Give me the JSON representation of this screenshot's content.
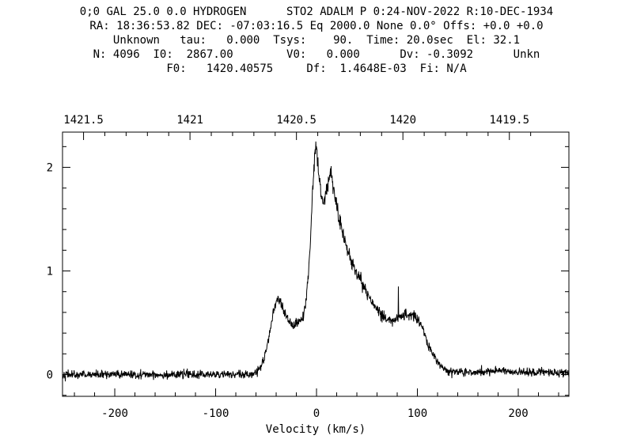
{
  "colors": {
    "background": "#ffffff",
    "foreground": "#000000"
  },
  "header": {
    "lines": [
      "0;0 GAL 25.0 0.0 HYDROGEN      STO2 ADALM P 0:24-NOV-2022 R:10-DEC-1934",
      "RA: 18:36:53.82 DEC: -07:03:16.5 Eq 2000.0 None 0.0° Offs: +0.0 +0.0",
      "Unknown   tau:   0.000  Tsys:    90.  Time: 20.0sec  El: 32.1",
      "N: 4096  I0:  2867.00        V0:   0.000      Dv: -0.3092      Unkn",
      "F0:   1420.40575     Df:  1.4648E-03  Fi: N/A"
    ]
  },
  "chart_data": {
    "type": "line",
    "title": "",
    "xlabel": "Velocity (km/s)",
    "ylabel": "",
    "grid": false,
    "legend": "none",
    "line_color": "#000000",
    "xlim": [
      -251.8,
      250.2
    ],
    "ylim": [
      -0.21,
      2.34
    ],
    "x_ticks_major": [
      -200,
      -100,
      0,
      100,
      200
    ],
    "x_tick_labels": [
      "-200",
      "-100",
      "0",
      "100",
      "200"
    ],
    "x_ticks_minor_step": 20,
    "y_ticks_major": [
      0,
      1,
      2
    ],
    "y_tick_labels": [
      "0",
      "1",
      "2"
    ],
    "y_ticks_minor_step": 0.2,
    "top_axis": {
      "unit": "MHz",
      "rest_freq": 1420.40575,
      "c_kms": 299792.458,
      "tick_start": 1421.5,
      "tick_step": 0.1,
      "tick_count": 22,
      "ticks_major": [
        1421.5,
        1421.0,
        1420.5,
        1420.0,
        1419.5
      ],
      "labels": [
        "1421.5",
        "1421",
        "1420.5",
        "1420",
        "1419.5"
      ]
    },
    "channel_width_kms": 0.31,
    "noise_sigma_base": 0.02,
    "noise_sigma_scale": 0.012,
    "noise_seed": 42,
    "spike": {
      "v": 81,
      "value": 0.85
    },
    "envelope_points": [
      [
        -251.8,
        0.0
      ],
      [
        -120,
        0.0
      ],
      [
        -70,
        0.0
      ],
      [
        -62,
        0.01
      ],
      [
        -57,
        0.05
      ],
      [
        -52,
        0.14
      ],
      [
        -48,
        0.3
      ],
      [
        -44,
        0.55
      ],
      [
        -41,
        0.67
      ],
      [
        -38,
        0.73
      ],
      [
        -35,
        0.68
      ],
      [
        -31,
        0.58
      ],
      [
        -27,
        0.5
      ],
      [
        -23,
        0.47
      ],
      [
        -19,
        0.48
      ],
      [
        -15,
        0.53
      ],
      [
        -12,
        0.6
      ],
      [
        -10,
        0.75
      ],
      [
        -8,
        0.95
      ],
      [
        -6,
        1.3
      ],
      [
        -4,
        1.75
      ],
      [
        -2.5,
        2.0
      ],
      [
        -1.5,
        2.12
      ],
      [
        -0.5,
        2.2
      ],
      [
        0.5,
        2.15
      ],
      [
        2,
        1.97
      ],
      [
        3.5,
        1.82
      ],
      [
        5,
        1.71
      ],
      [
        6.5,
        1.67
      ],
      [
        8,
        1.72
      ],
      [
        10,
        1.8
      ],
      [
        12,
        1.86
      ],
      [
        14,
        1.92
      ],
      [
        15.5,
        1.88
      ],
      [
        17,
        1.8
      ],
      [
        19,
        1.68
      ],
      [
        21,
        1.58
      ],
      [
        23,
        1.48
      ],
      [
        26,
        1.37
      ],
      [
        30,
        1.22
      ],
      [
        34,
        1.1
      ],
      [
        38,
        1.02
      ],
      [
        42,
        0.95
      ],
      [
        46,
        0.86
      ],
      [
        50,
        0.78
      ],
      [
        55,
        0.7
      ],
      [
        60,
        0.62
      ],
      [
        65,
        0.57
      ],
      [
        70,
        0.54
      ],
      [
        74,
        0.52
      ],
      [
        78,
        0.53
      ],
      [
        82,
        0.55
      ],
      [
        86,
        0.57
      ],
      [
        90,
        0.58
      ],
      [
        95,
        0.57
      ],
      [
        100,
        0.54
      ],
      [
        104,
        0.48
      ],
      [
        107,
        0.4
      ],
      [
        110,
        0.3
      ],
      [
        113,
        0.25
      ],
      [
        116,
        0.19
      ],
      [
        119,
        0.13
      ],
      [
        123,
        0.08
      ],
      [
        127,
        0.05
      ],
      [
        132,
        0.03
      ],
      [
        145,
        0.02
      ],
      [
        160,
        0.02
      ],
      [
        172,
        0.03
      ],
      [
        180,
        0.05
      ],
      [
        190,
        0.03
      ],
      [
        205,
        0.02
      ],
      [
        230,
        0.02
      ],
      [
        250.2,
        0.02
      ]
    ]
  }
}
